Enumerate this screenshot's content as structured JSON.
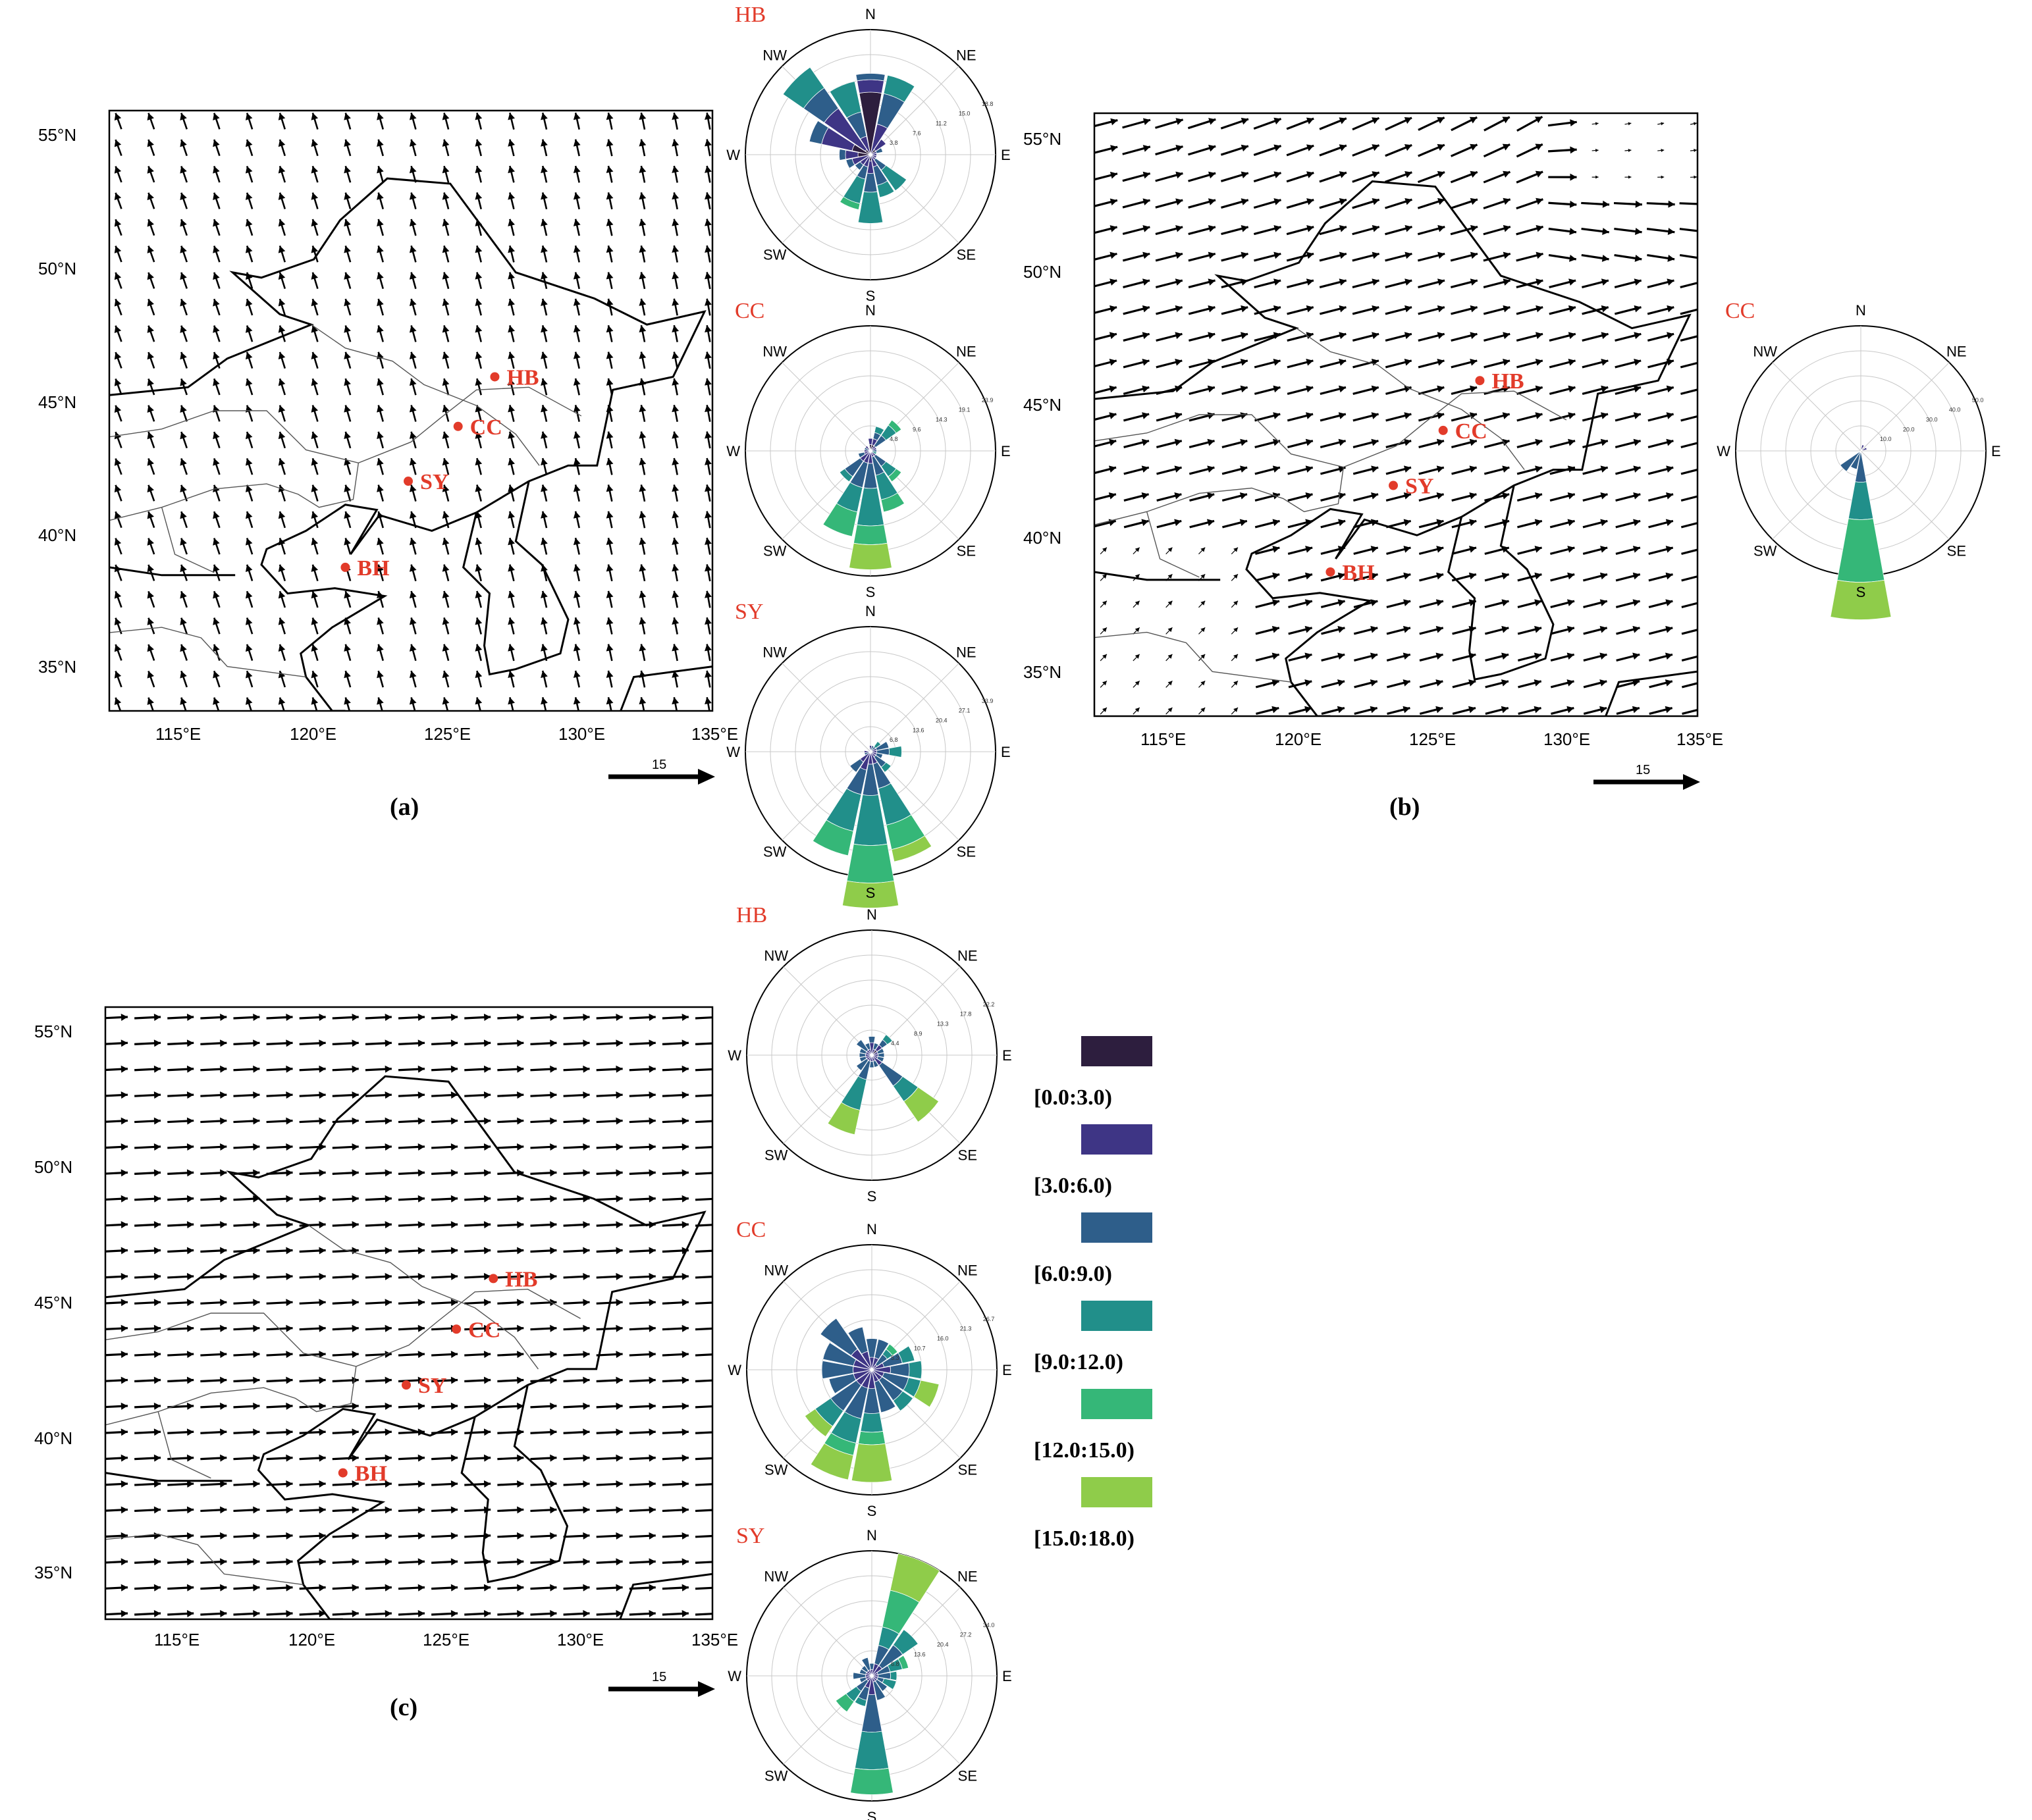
{
  "map_panels": [
    {
      "id": "a",
      "caption": "(a)",
      "pattern": "ssw",
      "lat_ticks": [
        "55°N",
        "50°N",
        "45°N",
        "40°N",
        "35°N"
      ],
      "lon_ticks": [
        "115°E",
        "120°E",
        "125°E",
        "130°E",
        "135°E"
      ],
      "ref_vector": "15"
    },
    {
      "id": "b",
      "caption": "(b)",
      "pattern": "wsw",
      "lat_ticks": [
        "55°N",
        "50°N",
        "45°N",
        "40°N",
        "35°N"
      ],
      "lon_ticks": [
        "115°E",
        "120°E",
        "125°E",
        "130°E",
        "135°E"
      ],
      "ref_vector": "15"
    },
    {
      "id": "c",
      "caption": "(c)",
      "pattern": "w",
      "lat_ticks": [
        "55°N",
        "50°N",
        "45°N",
        "40°N",
        "35°N"
      ],
      "lon_ticks": [
        "115°E",
        "120°E",
        "125°E",
        "130°E",
        "135°E"
      ],
      "ref_vector": "15"
    }
  ],
  "stations": [
    {
      "label": "HB",
      "lon": 126.7,
      "lat": 45.8
    },
    {
      "label": "CC",
      "lon": 125.3,
      "lat": 43.9
    },
    {
      "label": "SY",
      "lon": 123.4,
      "lat": 41.8
    },
    {
      "label": "BH",
      "lon": 121.0,
      "lat": 38.5
    }
  ],
  "compass_labels": [
    "N",
    "NE",
    "E",
    "SE",
    "S",
    "SW",
    "W",
    "NW"
  ],
  "wind_roses": [
    {
      "title": "HB",
      "panel": "a",
      "ring_labels": [
        "3.8",
        "7.6",
        "11.2",
        "15.0",
        "18.8"
      ],
      "sectors": [
        [
          10,
          2,
          1,
          0,
          0,
          0
        ],
        [
          0,
          5,
          5,
          3,
          0,
          0
        ],
        [
          1,
          2,
          0,
          0,
          0,
          0
        ],
        [
          0,
          1,
          1,
          0,
          0,
          0
        ],
        [
          0,
          1,
          0,
          0,
          0,
          0
        ],
        [
          0,
          1,
          0,
          0,
          0,
          0
        ],
        [
          0,
          1,
          2,
          4,
          0,
          0
        ],
        [
          0,
          2,
          3,
          2,
          0,
          0
        ],
        [
          1,
          2,
          3,
          5,
          0,
          0
        ],
        [
          0,
          2,
          2,
          4,
          1,
          0
        ],
        [
          0,
          2,
          1,
          0,
          0,
          0
        ],
        [
          0,
          3,
          1,
          0,
          0,
          0
        ],
        [
          2,
          2,
          1,
          0,
          0,
          0
        ],
        [
          3,
          5,
          2,
          0,
          0,
          0
        ],
        [
          1,
          8,
          4,
          4,
          0,
          0
        ],
        [
          0,
          3,
          4,
          5,
          0,
          0
        ]
      ]
    },
    {
      "title": "CC",
      "panel": "a",
      "ring_labels": [
        "4.8",
        "9.6",
        "14.3",
        "19.1",
        "23.9"
      ],
      "sectors": [
        [
          1,
          1,
          0,
          0,
          0,
          0
        ],
        [
          1,
          1,
          1,
          1,
          0,
          0
        ],
        [
          0,
          1,
          2,
          2,
          1,
          0
        ],
        [
          0,
          1,
          0,
          0,
          0,
          0
        ],
        [
          0,
          0,
          1,
          0,
          0,
          0
        ],
        [
          0,
          0,
          0,
          1,
          0,
          0
        ],
        [
          0,
          1,
          2,
          2,
          1,
          0
        ],
        [
          0,
          1,
          3,
          4,
          2,
          0
        ],
        [
          0,
          2,
          4,
          6,
          3,
          4
        ],
        [
          0,
          2,
          4,
          4,
          4,
          0
        ],
        [
          0,
          2,
          3,
          1,
          0,
          0
        ],
        [
          0,
          1,
          1,
          0,
          0,
          0
        ],
        [
          0,
          1,
          0,
          0,
          0,
          0
        ],
        [
          0,
          0,
          1,
          0,
          0,
          0
        ],
        [
          0,
          1,
          0,
          0,
          0,
          0
        ],
        [
          0,
          0,
          0,
          0,
          0,
          0
        ]
      ]
    },
    {
      "title": "SY",
      "panel": "a",
      "ring_labels": [
        "6.8",
        "13.6",
        "20.4",
        "27.1",
        "33.9"
      ],
      "sectors": [
        [
          0,
          1,
          0,
          0,
          0,
          0
        ],
        [
          0,
          0,
          1,
          0,
          0,
          0
        ],
        [
          0,
          0,
          1,
          1,
          0,
          0
        ],
        [
          0,
          1,
          2,
          0,
          0,
          0
        ],
        [
          0,
          1,
          2,
          2,
          0,
          0
        ],
        [
          0,
          1,
          1,
          0,
          0,
          0
        ],
        [
          0,
          1,
          2,
          1,
          0,
          0
        ],
        [
          0,
          2,
          4,
          6,
          4,
          2
        ],
        [
          0,
          2,
          5,
          8,
          6,
          4
        ],
        [
          0,
          3,
          4,
          6,
          4,
          0
        ],
        [
          0,
          2,
          2,
          0,
          0,
          0
        ],
        [
          0,
          0,
          1,
          0,
          0,
          0
        ],
        [
          0,
          1,
          0,
          0,
          0,
          0
        ],
        [
          0,
          0,
          0,
          0,
          0,
          0
        ],
        [
          0,
          0,
          0,
          0,
          0,
          0
        ],
        [
          0,
          0,
          0,
          0,
          0,
          0
        ]
      ]
    },
    {
      "title": "CC",
      "panel": "b",
      "ring_labels": [
        "10.0",
        "20.0",
        "30.0",
        "40.0",
        "50.0"
      ],
      "sectors": [
        [
          0,
          0,
          0,
          0,
          0,
          0
        ],
        [
          0,
          1,
          0,
          0,
          0,
          0
        ],
        [
          0,
          0,
          0,
          0,
          0,
          0
        ],
        [
          0,
          1,
          0,
          0,
          0,
          0
        ],
        [
          0,
          0,
          0,
          0,
          0,
          0
        ],
        [
          0,
          0,
          0,
          0,
          0,
          0
        ],
        [
          0,
          0,
          0,
          0,
          0,
          0
        ],
        [
          0,
          0,
          0,
          0,
          0,
          0
        ],
        [
          0,
          0,
          5,
          6,
          10,
          6
        ],
        [
          0,
          0,
          3,
          0,
          0,
          0
        ],
        [
          0,
          0,
          4,
          0,
          0,
          0
        ],
        [
          0,
          0,
          0,
          0,
          0,
          0
        ],
        [
          0,
          0,
          0,
          0,
          0,
          0
        ],
        [
          0,
          0,
          0,
          0,
          0,
          0
        ],
        [
          0,
          0,
          0,
          0,
          0,
          0
        ],
        [
          0,
          0,
          0,
          0,
          0,
          0
        ]
      ]
    },
    {
      "title": "HB",
      "panel": "c",
      "ring_labels": [
        "4.4",
        "8.9",
        "13.3",
        "17.8",
        "22.2"
      ],
      "sectors": [
        [
          0,
          2,
          1,
          0,
          0,
          0
        ],
        [
          0,
          1,
          1,
          0,
          0,
          0
        ],
        [
          1,
          1,
          1,
          1,
          0,
          0
        ],
        [
          0,
          1,
          1,
          0,
          0,
          0
        ],
        [
          0,
          1,
          1,
          0,
          0,
          0
        ],
        [
          0,
          1,
          1,
          0,
          0,
          0
        ],
        [
          0,
          2,
          4,
          3,
          0,
          4
        ],
        [
          0,
          1,
          1,
          0,
          0,
          0
        ],
        [
          0,
          1,
          1,
          0,
          0,
          0
        ],
        [
          0,
          1,
          3,
          5,
          0,
          4
        ],
        [
          0,
          1,
          2,
          0,
          0,
          0
        ],
        [
          0,
          1,
          1,
          0,
          0,
          0
        ],
        [
          0,
          1,
          1,
          0,
          0,
          0
        ],
        [
          0,
          1,
          1,
          0,
          0,
          0
        ],
        [
          0,
          1,
          2,
          0,
          0,
          0
        ],
        [
          0,
          1,
          1,
          0,
          0,
          0
        ]
      ]
    },
    {
      "title": "CC",
      "panel": "c",
      "ring_labels": [
        "5.3",
        "10.7",
        "16.0",
        "21.3",
        "26.7"
      ],
      "sectors": [
        [
          0,
          2,
          3,
          0,
          0,
          0
        ],
        [
          0,
          2,
          3,
          0,
          0,
          0
        ],
        [
          0,
          1,
          2,
          1,
          1,
          0
        ],
        [
          0,
          2,
          3,
          2,
          0,
          0
        ],
        [
          0,
          3,
          3,
          2,
          0,
          0
        ],
        [
          0,
          2,
          4,
          2,
          0,
          3
        ],
        [
          0,
          2,
          4,
          2,
          0,
          0
        ],
        [
          0,
          2,
          5,
          0,
          0,
          0
        ],
        [
          0,
          3,
          4,
          3,
          2,
          6
        ],
        [
          0,
          3,
          5,
          4,
          2,
          4
        ],
        [
          0,
          3,
          5,
          3,
          0,
          2
        ],
        [
          0,
          3,
          4,
          0,
          0,
          0
        ],
        [
          0,
          3,
          5,
          0,
          0,
          0
        ],
        [
          0,
          3,
          5,
          0,
          0,
          0
        ],
        [
          0,
          4,
          6,
          0,
          0,
          0
        ],
        [
          0,
          3,
          4,
          0,
          0,
          0
        ]
      ]
    },
    {
      "title": "SY",
      "panel": "c",
      "ring_labels": [
        "6.8",
        "13.6",
        "20.4",
        "27.2",
        "34.0"
      ],
      "sectors": [
        [
          0,
          1,
          1,
          0,
          0,
          0
        ],
        [
          0,
          2,
          3,
          3,
          6,
          6
        ],
        [
          0,
          2,
          4,
          3,
          0,
          0
        ],
        [
          0,
          1,
          2,
          2,
          1,
          0
        ],
        [
          0,
          1,
          2,
          1,
          0,
          0
        ],
        [
          0,
          1,
          1,
          2,
          0,
          0
        ],
        [
          0,
          1,
          2,
          0,
          0,
          0
        ],
        [
          0,
          1,
          3,
          0,
          0,
          0
        ],
        [
          0,
          3,
          6,
          6,
          4,
          0
        ],
        [
          0,
          2,
          2,
          1,
          0,
          0
        ],
        [
          0,
          1,
          2,
          2,
          2,
          0
        ],
        [
          0,
          1,
          1,
          0,
          0,
          0
        ],
        [
          0,
          1,
          2,
          0,
          0,
          0
        ],
        [
          0,
          1,
          1,
          0,
          0,
          0
        ],
        [
          0,
          1,
          1,
          0,
          0,
          0
        ],
        [
          0,
          1,
          2,
          0,
          0,
          0
        ]
      ]
    }
  ],
  "legend": {
    "items": [
      {
        "label": "[0.0:3.0)",
        "color": "#2d1e3e"
      },
      {
        "label": "[3.0:6.0)",
        "color": "#3e3585"
      },
      {
        "label": "[6.0:9.0)",
        "color": "#2e5e8a"
      },
      {
        "label": "[9.0:12.0)",
        "color": "#218f8a"
      },
      {
        "label": "[12.0:15.0)",
        "color": "#35b778"
      },
      {
        "label": "[15.0:18.0)",
        "color": "#8fcc4a"
      }
    ],
    "extra_color": "#f5e333"
  }
}
